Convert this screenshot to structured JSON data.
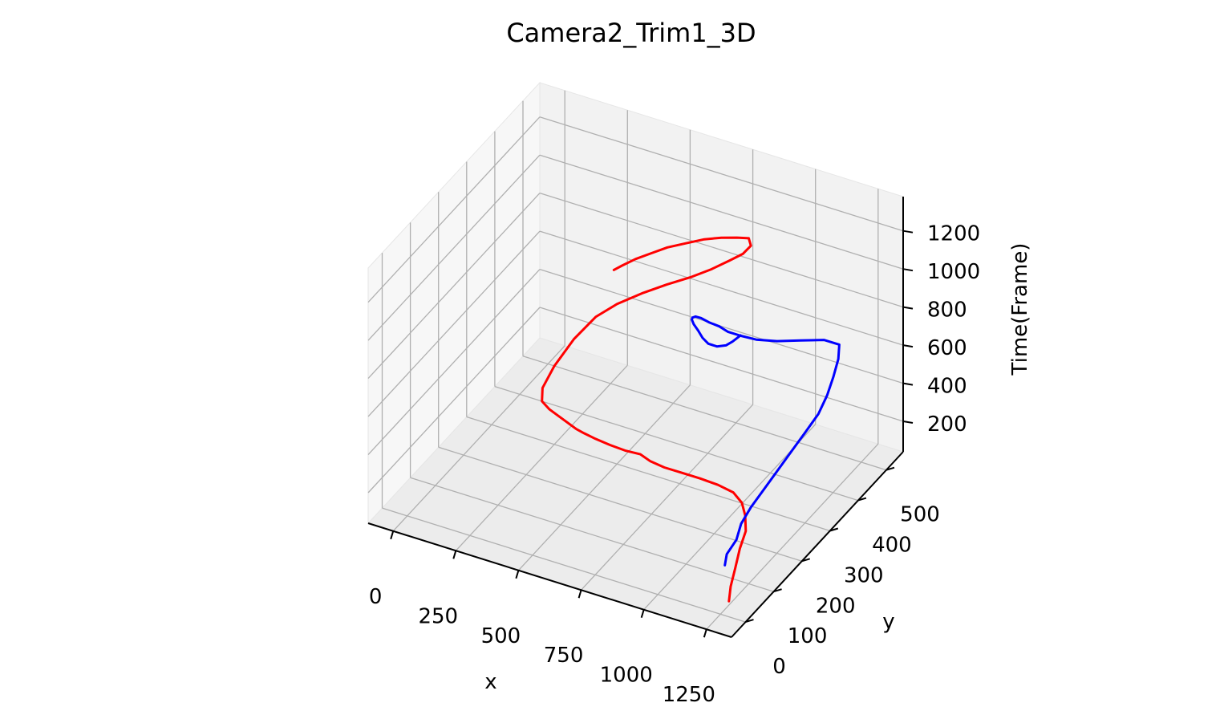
{
  "chart_data": {
    "type": "line3d",
    "title": "Camera2_Trim1_3D",
    "xlabel": "x",
    "ylabel": "y",
    "zlabel": "Time(Frame)",
    "x_ticks": [
      0,
      250,
      500,
      750,
      1000,
      1250
    ],
    "y_ticks": [
      0,
      100,
      200,
      300,
      400,
      500
    ],
    "z_ticks": [
      200,
      400,
      600,
      800,
      1000,
      1200
    ],
    "grid": true,
    "colors": {
      "red_series": "#ff0000",
      "blue_series": "#0000ff",
      "pane_fill": "#f2f2f2",
      "grid": "#b0b0b0"
    },
    "series": [
      {
        "color": "#ff0000",
        "points": [
          [
            1250,
            30,
            60
          ],
          [
            1240,
            45,
            110
          ],
          [
            1230,
            70,
            160
          ],
          [
            1215,
            100,
            210
          ],
          [
            1205,
            130,
            250
          ],
          [
            1180,
            150,
            290
          ],
          [
            1150,
            165,
            320
          ],
          [
            1110,
            170,
            350
          ],
          [
            1060,
            160,
            385
          ],
          [
            1000,
            150,
            410
          ],
          [
            940,
            140,
            430
          ],
          [
            880,
            130,
            450
          ],
          [
            830,
            125,
            470
          ],
          [
            790,
            125,
            490
          ],
          [
            740,
            115,
            505
          ],
          [
            690,
            105,
            530
          ],
          [
            640,
            95,
            560
          ],
          [
            610,
            85,
            590
          ],
          [
            590,
            75,
            620
          ],
          [
            560,
            70,
            650
          ],
          [
            530,
            65,
            680
          ],
          [
            500,
            60,
            710
          ],
          [
            470,
            60,
            740
          ],
          [
            450,
            80,
            770
          ],
          [
            440,
            130,
            800
          ],
          [
            440,
            200,
            830
          ],
          [
            460,
            260,
            860
          ],
          [
            500,
            300,
            880
          ],
          [
            560,
            340,
            900
          ],
          [
            620,
            370,
            920
          ],
          [
            680,
            400,
            935
          ],
          [
            730,
            430,
            950
          ],
          [
            770,
            460,
            965
          ],
          [
            800,
            480,
            980
          ],
          [
            810,
            500,
            995
          ],
          [
            790,
            510,
            1010
          ],
          [
            760,
            495,
            1025
          ],
          [
            720,
            475,
            1040
          ],
          [
            680,
            450,
            1055
          ],
          [
            640,
            420,
            1065
          ],
          [
            600,
            390,
            1075
          ],
          [
            570,
            360,
            1080
          ],
          [
            540,
            330,
            1085
          ],
          [
            520,
            300,
            1090
          ],
          [
            510,
            280,
            1095
          ]
        ]
      },
      {
        "color": "#0000ff",
        "points": [
          [
            1200,
            60,
            180
          ],
          [
            1185,
            80,
            200
          ],
          [
            1190,
            110,
            230
          ],
          [
            1175,
            140,
            260
          ],
          [
            1180,
            170,
            300
          ],
          [
            1190,
            210,
            340
          ],
          [
            1200,
            250,
            380
          ],
          [
            1210,
            290,
            420
          ],
          [
            1220,
            330,
            460
          ],
          [
            1225,
            370,
            490
          ],
          [
            1215,
            410,
            520
          ],
          [
            1195,
            450,
            545
          ],
          [
            1170,
            490,
            565
          ],
          [
            1140,
            520,
            580
          ],
          [
            1090,
            510,
            600
          ],
          [
            1030,
            480,
            620
          ],
          [
            970,
            450,
            640
          ],
          [
            910,
            430,
            655
          ],
          [
            860,
            420,
            670
          ],
          [
            820,
            410,
            690
          ],
          [
            790,
            405,
            715
          ],
          [
            760,
            395,
            740
          ],
          [
            740,
            385,
            770
          ],
          [
            735,
            370,
            800
          ],
          [
            745,
            350,
            830
          ],
          [
            765,
            330,
            860
          ],
          [
            795,
            310,
            880
          ],
          [
            835,
            290,
            895
          ],
          [
            875,
            270,
            905
          ],
          [
            915,
            255,
            915
          ],
          [
            955,
            250,
            925
          ],
          [
            985,
            255,
            935
          ],
          [
            1000,
            265,
            945
          ],
          [
            1010,
            285,
            950
          ]
        ]
      }
    ]
  }
}
